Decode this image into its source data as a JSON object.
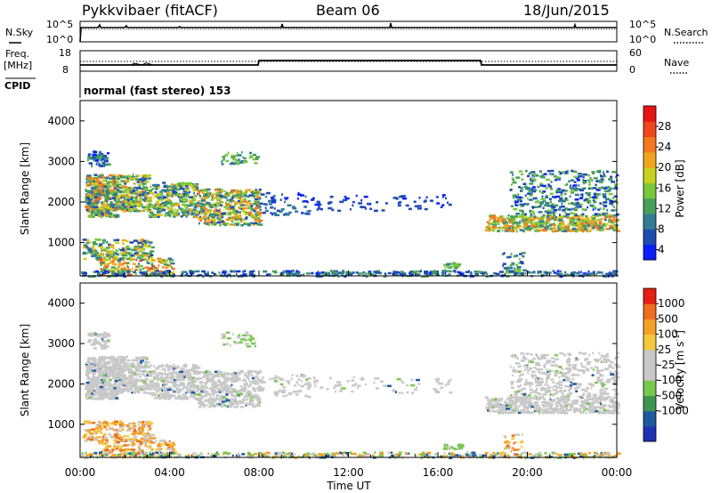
{
  "header": {
    "radar": "Pykkvibaer (fitACF)",
    "beam": "Beam 06",
    "date": "18/Jun/2015"
  },
  "strips": {
    "nsky_label": "N.Sky",
    "nsearch_label": "N.Search",
    "nsky_ticks": [
      "10^5",
      "10^0"
    ],
    "nsearch_ticks": [
      "10^5",
      "10^0"
    ],
    "freq_label": "Freq.",
    "freq_unit": "[MHz]",
    "freq_ticks": [
      "18",
      "8"
    ],
    "nave_label": "Nave",
    "nave_ticks": [
      "60",
      "0"
    ],
    "cpid_label": "CPID",
    "cpid_text": "normal (fast stereo) 153"
  },
  "chart_data": [
    {
      "type": "heatmap",
      "quantity": "Power",
      "ylabel": "Slant Range [km]",
      "xlabel": "Time UT",
      "ylim": [
        180,
        4500
      ],
      "x_ticks": [
        "00:00",
        "04:00",
        "08:00",
        "12:00",
        "16:00",
        "20:00",
        "00:00"
      ],
      "y_ticks": [
        1000,
        2000,
        3000,
        4000
      ],
      "colorbar": {
        "label": "Power [dB]",
        "ticks": [
          4,
          8,
          12,
          16,
          20,
          24,
          28
        ],
        "colors": [
          "#0a1eff",
          "#1e4ab4",
          "#327a96",
          "#46a05a",
          "#78c83c",
          "#c8d21e",
          "#f0a51e",
          "#f5781e",
          "#f0461e",
          "#e61414"
        ]
      }
    },
    {
      "type": "heatmap",
      "quantity": "Velocity",
      "ylabel": "Slant Range [km]",
      "xlabel": "Time UT",
      "ylim": [
        180,
        4500
      ],
      "x_ticks": [
        "00:00",
        "04:00",
        "08:00",
        "12:00",
        "16:00",
        "20:00",
        "00:00"
      ],
      "y_ticks": [
        1000,
        2000,
        3000,
        4000
      ],
      "colorbar": {
        "label": "Velocity [m s",
        "label_sup": "-1",
        "label_end": "]",
        "ticks": [
          1000,
          500,
          100,
          25,
          -25,
          -100,
          -500,
          -1000
        ],
        "colors": [
          "#1e32b4",
          "#1e5aa0",
          "#3c9650",
          "#78c850",
          "#c8c8c8",
          "#c8c8c8",
          "#f5c83c",
          "#f5a028",
          "#f06e1e",
          "#e61e14"
        ]
      }
    }
  ]
}
